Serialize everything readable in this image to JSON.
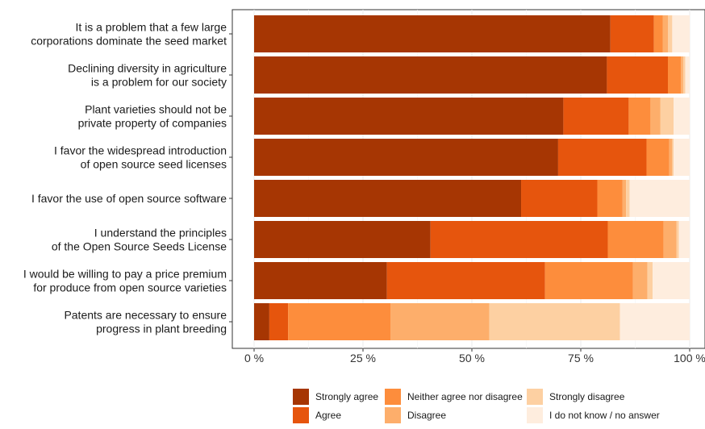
{
  "chart_data": {
    "type": "bar",
    "orientation": "horizontal",
    "stacked": true,
    "xlim": [
      0,
      100
    ],
    "ticks": [
      {
        "value": 0,
        "label": "0 %"
      },
      {
        "value": 25,
        "label": "25 %"
      },
      {
        "value": 50,
        "label": "50 %"
      },
      {
        "value": 75,
        "label": "75 %"
      },
      {
        "value": 100,
        "label": "100 %"
      }
    ],
    "grid": true,
    "legend_position": "bottom",
    "categories": [
      [
        "It is a problem that a few large",
        "corporations dominate the seed market"
      ],
      [
        "Declining diversity in agriculture",
        "is a problem for our society"
      ],
      [
        "Plant varieties should not be",
        "private property of companies"
      ],
      [
        "I favor the widespread introduction",
        "of open source seed licenses"
      ],
      [
        "I favor the use of open source software"
      ],
      [
        "I understand the principles",
        "of the Open Source Seeds License"
      ],
      [
        "I would be willing to pay a price premium",
        "for produce from open source varieties"
      ],
      [
        "Patents are necessary to ensure",
        "progress in plant breeding"
      ]
    ],
    "series": [
      {
        "name": "Strongly agree",
        "color": "#a63603",
        "values": [
          81.8,
          81.0,
          71.0,
          69.8,
          61.3,
          40.5,
          30.5,
          3.5
        ]
      },
      {
        "name": "Agree",
        "color": "#e6550d",
        "values": [
          10.0,
          14.0,
          15.0,
          20.3,
          17.5,
          40.7,
          36.3,
          4.3
        ]
      },
      {
        "name": "Neither agree nor disagree",
        "color": "#fd8d3c",
        "values": [
          2.0,
          3.0,
          5.0,
          5.2,
          5.8,
          12.8,
          20.2,
          23.5
        ]
      },
      {
        "name": "Disagree",
        "color": "#fdae6b",
        "values": [
          1.2,
          0.5,
          2.3,
          0.7,
          0.8,
          3.0,
          3.3,
          22.7
        ]
      },
      {
        "name": "Strongly disagree",
        "color": "#fdd0a2",
        "values": [
          1.0,
          0.5,
          3.0,
          0.3,
          0.8,
          0.5,
          1.2,
          30.0
        ]
      },
      {
        "name": "I do not know / no answer",
        "color": "#feedde",
        "values": [
          4.0,
          1.0,
          3.7,
          3.7,
          13.8,
          2.5,
          8.5,
          16.0
        ]
      }
    ]
  }
}
